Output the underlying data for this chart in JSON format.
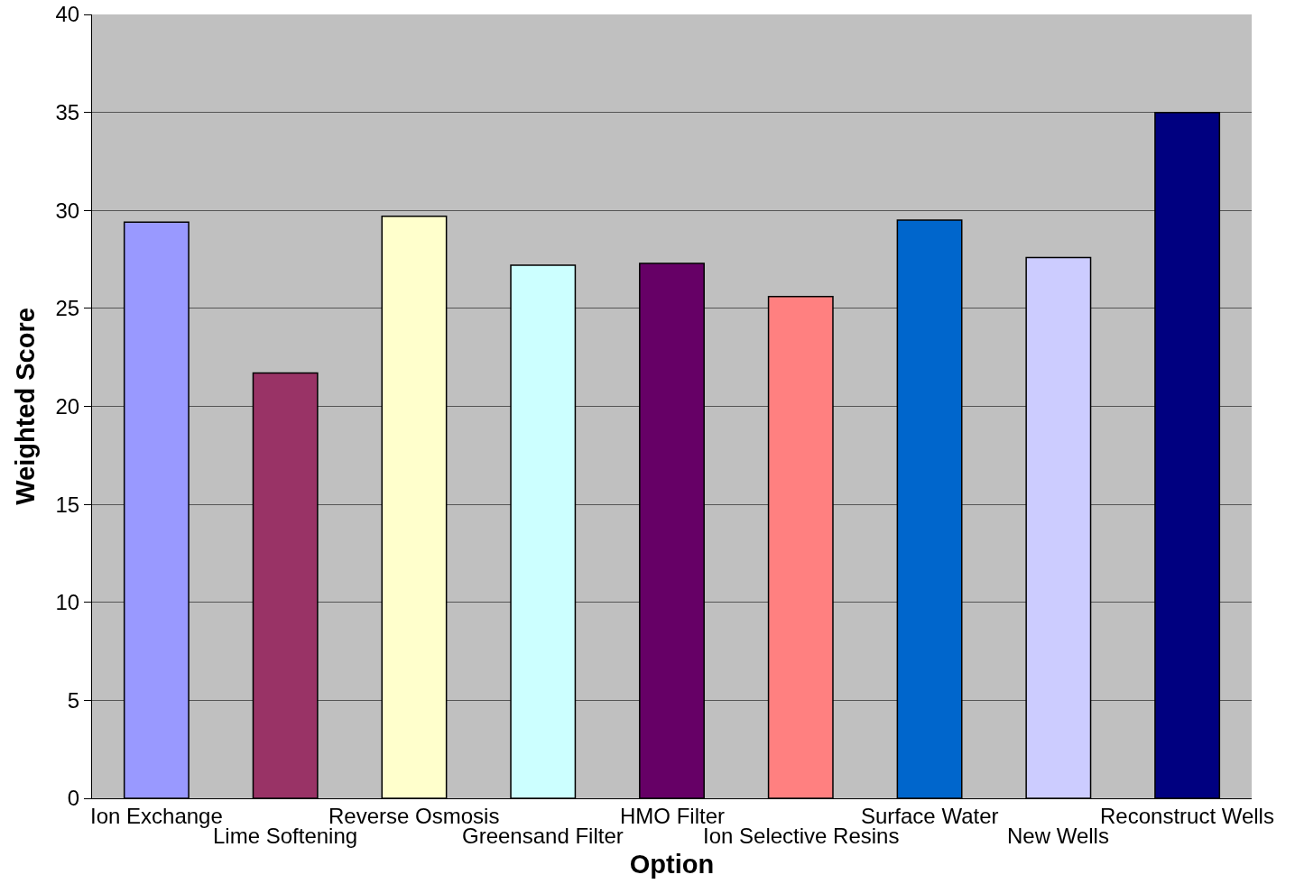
{
  "chart_data": {
    "type": "bar",
    "xlabel": "Option",
    "ylabel": "Weighted Score",
    "categories": [
      "Ion Exchange",
      "Lime Softening",
      "Reverse Osmosis",
      "Greensand Filter",
      "HMO Filter",
      "Ion Selective Resins",
      "Surface Water",
      "New Wells",
      "Reconstruct Wells"
    ],
    "values": [
      29.4,
      21.7,
      29.7,
      27.2,
      27.3,
      25.6,
      29.5,
      27.6,
      35.0
    ],
    "colors": [
      "#9999ff",
      "#993366",
      "#ffffcc",
      "#ccffff",
      "#660066",
      "#ff8080",
      "#0066cc",
      "#ccccff",
      "#000080"
    ],
    "ylim": [
      0,
      40
    ],
    "yticks": [
      0,
      5,
      10,
      15,
      20,
      25,
      30,
      35,
      40
    ],
    "grid": "y"
  }
}
